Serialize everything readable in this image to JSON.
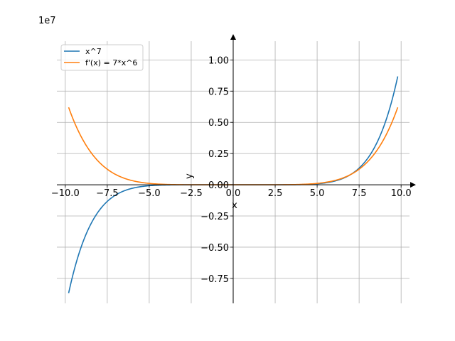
{
  "chart_data": {
    "type": "line",
    "title": "",
    "xlabel": "x",
    "ylabel": "y",
    "offset_label": "1e7",
    "xlim": [
      -10.5,
      10.5
    ],
    "ylim": [
      -0.95,
      1.15
    ],
    "x_ticks": [
      -10.0,
      -7.5,
      -5.0,
      -2.5,
      0.0,
      2.5,
      5.0,
      7.5,
      10.0
    ],
    "x_tick_labels": [
      "−10.0",
      "−7.5",
      "−5.0",
      "−2.5",
      "0.0",
      "2.5",
      "5.0",
      "7.5",
      "10.0"
    ],
    "y_ticks": [
      -0.75,
      -0.5,
      -0.25,
      0.0,
      0.25,
      0.5,
      0.75,
      1.0
    ],
    "y_tick_labels": [
      "−0.75",
      "−0.50",
      "−0.25",
      "0.00",
      "0.25",
      "0.50",
      "0.75",
      "1.00"
    ],
    "grid": true,
    "legend_position": "top-left",
    "x_range": [
      -9.8,
      9.8
    ],
    "series": [
      {
        "name": "x^7",
        "color": "#1f77b4",
        "formula": "x^7",
        "scale": 1e-07
      },
      {
        "name": "f'(x) = 7*x^6",
        "color": "#ff7f0e",
        "formula": "7*x^6",
        "scale": 1e-07
      }
    ]
  }
}
